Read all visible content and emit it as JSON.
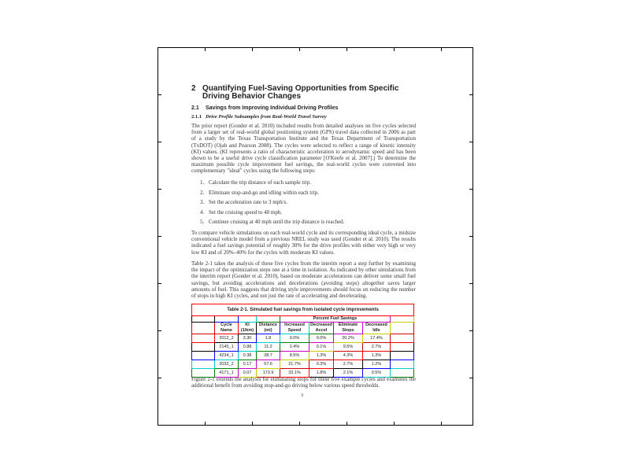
{
  "heading": {
    "number": "2",
    "title": "Quantifying Fuel-Saving Opportunities from Specific Driving Behavior Changes"
  },
  "section": {
    "number": "2.1",
    "title": "Savings from Improving Individual Driving Profiles"
  },
  "subsection": {
    "number": "2.1.1",
    "title": "Drive Profile Subsamples from Real-World Travel Survey"
  },
  "paragraphs": [
    "The prior report (Gonder et al. 2010) included results from detailed analyses on five cycles selected from a larger set of real-world global positioning system (GPS) travel data collected in 2006 as part of a study by the Texas Transportation Institute and the Texas Department of Transportation (TxDOT) (Ojah and Pearson 2008). The cycles were selected to reflect a range of kinetic intensity (KI) values. (KI represents a ratio of characteristic acceleration to aerodynamic speed and has been shown to be a useful drive cycle classification parameter [O'Keefe et al. 2007].) To determine the maximum possible cycle improvement fuel savings, the real-world cycles were converted into complementary \"ideal\" cycles using the following steps:",
    "To compare vehicle simulations on each real-world cycle and its corresponding ideal cycle, a midsize conventional vehicle model from a previous NREL study was used (Gonder et al. 2010). The results indicated a fuel savings potential of roughly 30% for the drive profiles with either very high or very low KI and of 20%–40% for the cycles with moderate KI values.",
    "Table 2-1 takes the analysis of these five cycles from the interim report a step further by examining the impact of the optimization steps one at a time in isolation. As indicated by other simulations from the interim report (Gonder et al. 2010), based on moderate accelerations can deliver some small fuel savings, but avoiding accelerations and decelerations (avoiding stops) altogether saves larger amounts of fuel. This suggests that driving style improvements should focus on reducing the number of stops in high KI cycles, and not just the rate of accelerating and decelerating.",
    "Figure 2-1 extends the analysis for eliminating stops for these five example cycles and examines the additional benefit from avoiding stop-and-go driving below various speed thresholds."
  ],
  "steps": [
    "Calculate the trip distance of each sample trip.",
    "Eliminate stop-and-go and idling within each trip.",
    "Set the acceleration rate to 3 mph/s.",
    "Set the cruising speed to 40 mph.",
    "Continue cruising at 40 mph until the trip distance is reached."
  ],
  "table": {
    "caption": "Table 2-1. Simulated fuel savings from isolated cycle improvements",
    "group_header": "Percent Fuel Savings",
    "columns": [
      "Cycle Name",
      "KI (1/km)",
      "Distance (mi)",
      "Increased Speed",
      "Decreased Accel",
      "Eliminate Stops",
      "Decreased Idle"
    ],
    "rows": [
      [
        "2012_2",
        "3.30",
        "1.8",
        "0.0%",
        "0.0%",
        "20.2%",
        "17.4%"
      ],
      [
        "2145_1",
        "0.88",
        "11.2",
        "2.4%",
        "0.1%",
        "9.5%",
        "2.7%"
      ],
      [
        "4234_1",
        "0.38",
        "38.7",
        "8.5%",
        "1.3%",
        "4.3%",
        "1.3%"
      ],
      [
        "2032_2",
        "0.17",
        "57.6",
        "21.7%",
        "0.3%",
        "2.7%",
        "1.2%"
      ],
      [
        "4171_1",
        "0.07",
        "173.9",
        "33.1%",
        "1.8%",
        "2.1%",
        "0.5%"
      ]
    ]
  },
  "page_number": "3",
  "overlay_colors": [
    "#ff0000",
    "#000000",
    "#0000ff",
    "#00cccc",
    "#008000",
    "#cc00cc",
    "#cccc00",
    "#cc0000"
  ]
}
